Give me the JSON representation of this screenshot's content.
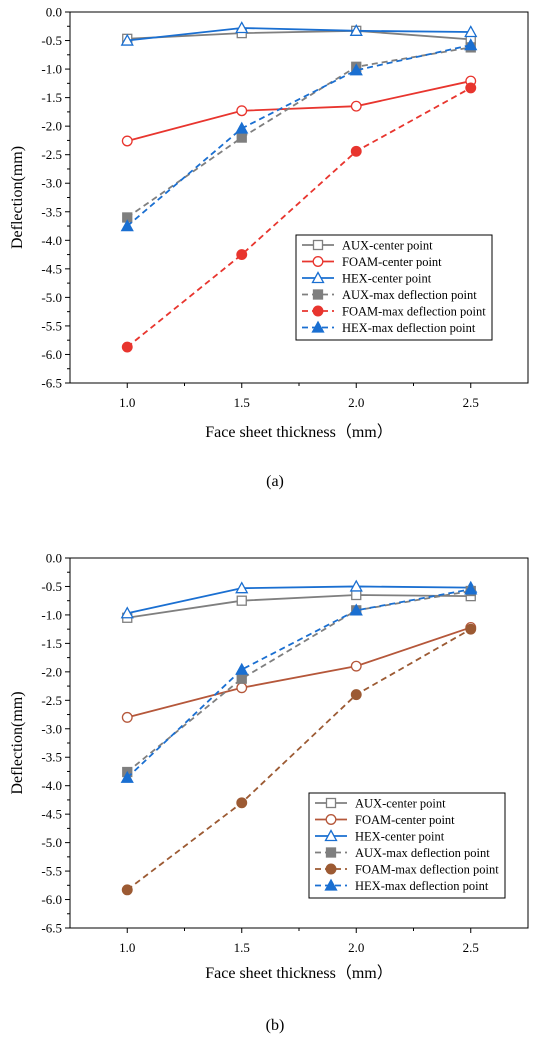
{
  "chart_data": [
    {
      "panel": "a",
      "caption": "(a)",
      "type": "line",
      "xlabel": "Face sheet thickness（mm）",
      "ylabel": "Deflection(mm)",
      "x": [
        1.0,
        1.5,
        2.0,
        2.5
      ],
      "x_ticks": [
        "1.0",
        "1.5",
        "2.0",
        "2.5"
      ],
      "xlim": [
        0.75,
        2.75
      ],
      "ylim": [
        -6.5,
        0.0
      ],
      "y_ticks": [
        "0.0",
        "-0.5",
        "-1.0",
        "-1.5",
        "-2.0",
        "-2.5",
        "-3.0",
        "-3.5",
        "-4.0",
        "-4.5",
        "-5.0",
        "-5.5",
        "-6.0",
        "-6.5"
      ],
      "legend_position": "lower-right",
      "series": [
        {
          "name": "AUX-center point",
          "color": "#7f7f7f",
          "marker": "square",
          "filled": false,
          "dashed": false,
          "values": [
            -0.47,
            -0.37,
            -0.33,
            -0.48
          ]
        },
        {
          "name": "FOAM-center point",
          "color": "#e8352e",
          "marker": "circle",
          "filled": false,
          "dashed": false,
          "values": [
            -2.26,
            -1.73,
            -1.65,
            -1.21
          ]
        },
        {
          "name": "HEX-center point",
          "color": "#1a6fd1",
          "marker": "triangle",
          "filled": false,
          "dashed": false,
          "values": [
            -0.5,
            -0.28,
            -0.33,
            -0.35
          ]
        },
        {
          "name": "AUX-max deflection point",
          "color": "#7f7f7f",
          "marker": "square",
          "filled": true,
          "dashed": true,
          "values": [
            -3.6,
            -2.2,
            -0.96,
            -0.62
          ]
        },
        {
          "name": "FOAM-max deflection point",
          "color": "#e8352e",
          "marker": "circle",
          "filled": true,
          "dashed": true,
          "values": [
            -5.87,
            -4.25,
            -2.44,
            -1.33
          ]
        },
        {
          "name": "HEX-max deflection point",
          "color": "#1a6fd1",
          "marker": "triangle",
          "filled": true,
          "dashed": true,
          "values": [
            -3.75,
            -2.04,
            -1.02,
            -0.58
          ]
        }
      ]
    },
    {
      "panel": "b",
      "caption": "(b)",
      "type": "line",
      "xlabel": "Face sheet thickness（mm）",
      "ylabel": "Deflection(mm)",
      "x": [
        1.0,
        1.5,
        2.0,
        2.5
      ],
      "x_ticks": [
        "1.0",
        "1.5",
        "2.0",
        "2.5"
      ],
      "xlim": [
        0.75,
        2.75
      ],
      "ylim": [
        -6.5,
        0.0
      ],
      "y_ticks": [
        "0.0",
        "-0.5",
        "-1.0",
        "-1.5",
        "-2.0",
        "-2.5",
        "-3.0",
        "-3.5",
        "-4.0",
        "-4.5",
        "-5.0",
        "-5.5",
        "-6.0",
        "-6.5"
      ],
      "legend_position": "lower-right",
      "series": [
        {
          "name": "AUX-center point",
          "color": "#7f7f7f",
          "marker": "square",
          "filled": false,
          "dashed": false,
          "values": [
            -1.05,
            -0.75,
            -0.65,
            -0.67
          ]
        },
        {
          "name": "FOAM-center point",
          "color": "#b5573a",
          "marker": "circle",
          "filled": false,
          "dashed": false,
          "values": [
            -2.8,
            -2.28,
            -1.9,
            -1.22
          ]
        },
        {
          "name": "HEX-center point",
          "color": "#1a6fd1",
          "marker": "triangle",
          "filled": false,
          "dashed": false,
          "values": [
            -0.97,
            -0.53,
            -0.5,
            -0.52
          ]
        },
        {
          "name": "AUX-max deflection point",
          "color": "#7f7f7f",
          "marker": "square",
          "filled": true,
          "dashed": true,
          "values": [
            -3.76,
            -2.12,
            -0.92,
            -0.58
          ]
        },
        {
          "name": "FOAM-max deflection point",
          "color": "#9c5a33",
          "marker": "circle",
          "filled": true,
          "dashed": true,
          "values": [
            -5.83,
            -4.3,
            -2.4,
            -1.25
          ]
        },
        {
          "name": "HEX-max deflection point",
          "color": "#1a6fd1",
          "marker": "triangle",
          "filled": true,
          "dashed": true,
          "values": [
            -3.86,
            -1.96,
            -0.92,
            -0.55
          ]
        }
      ]
    }
  ]
}
